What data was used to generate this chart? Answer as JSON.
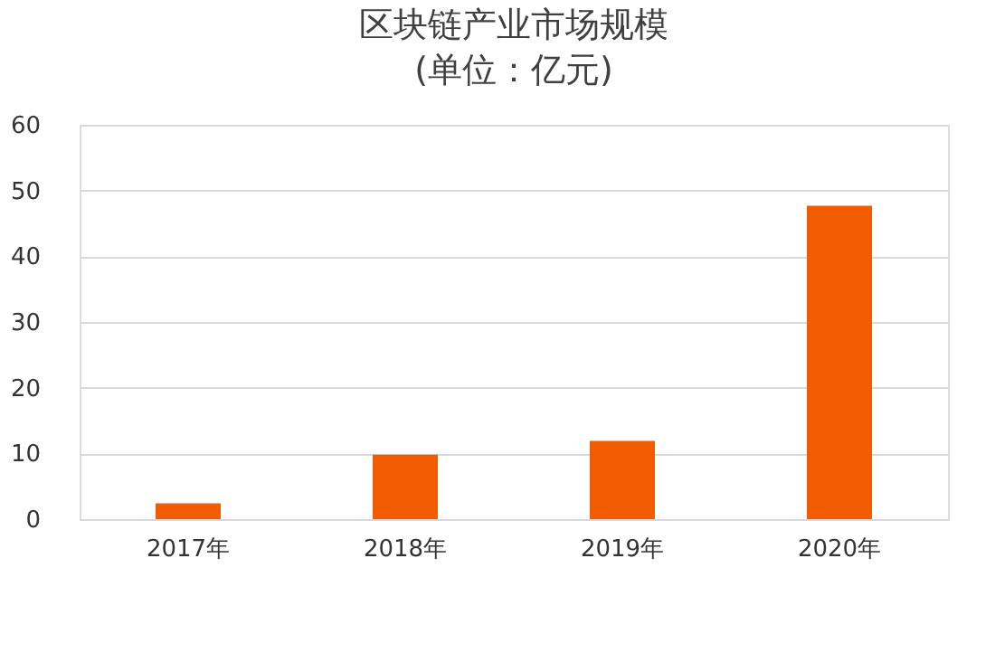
{
  "chart_data": {
    "type": "bar",
    "title": "区块链产业市场规模",
    "subtitle": "(单位：亿元)",
    "categories": [
      "2017年",
      "2018年",
      "2019年",
      "2020年"
    ],
    "values": [
      2.4,
      9.8,
      11.9,
      47.7
    ],
    "color": "#f25c00",
    "ylim": [
      0,
      60
    ],
    "yticks": [
      0,
      10,
      20,
      30,
      40,
      50,
      60
    ],
    "grid": "y"
  }
}
